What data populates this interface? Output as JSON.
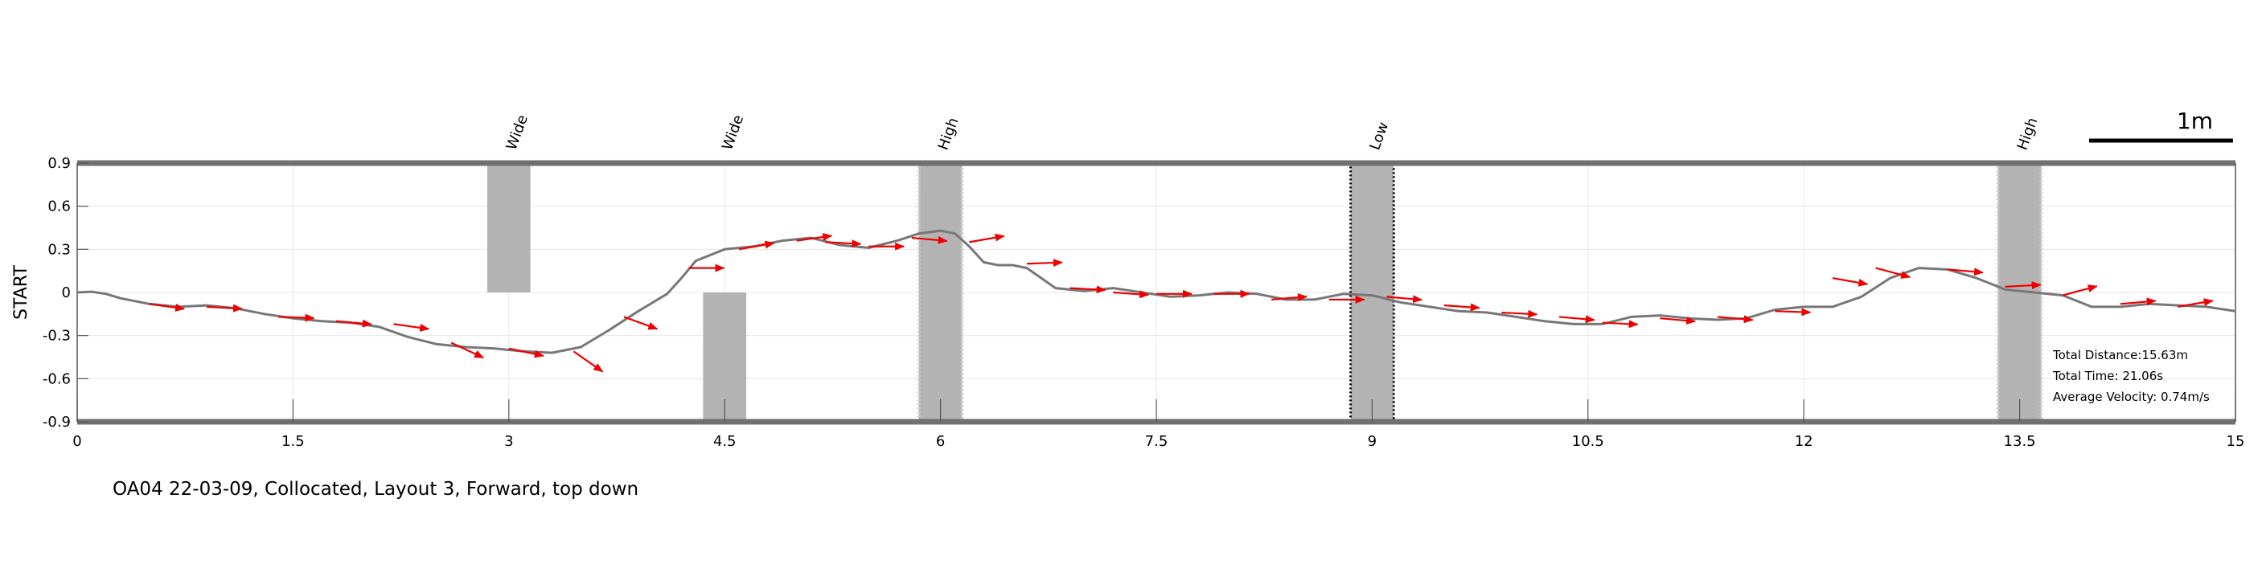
{
  "chart_data": {
    "type": "line",
    "ylabel": "START",
    "xlabel": "",
    "xlim": [
      0,
      15
    ],
    "ylim": [
      -0.9,
      0.9
    ],
    "x_ticks": [
      0,
      1.5,
      3,
      4.5,
      6,
      7.5,
      9,
      10.5,
      12,
      13.5,
      15
    ],
    "y_ticks": [
      0.9,
      0.6,
      0.3,
      0,
      -0.3,
      -0.6,
      -0.9
    ],
    "grid": true,
    "scale_bar_label": "1m",
    "scale_bar_length": 1,
    "caption": "OA04 22-03-09, Collocated, Layout 3, Forward, top down",
    "stats": [
      "Total Distance:15.63m",
      "Total Time: 21.06s",
      "Average Velocity: 0.74m/s"
    ],
    "obstacles": [
      {
        "label": "Wide",
        "x0": 2.85,
        "x1": 3.15,
        "y0": 0.0,
        "y1": 0.9,
        "dotted_border": false
      },
      {
        "label": "Wide",
        "x0": 4.35,
        "x1": 4.65,
        "y0": -0.9,
        "y1": 0.0,
        "dotted_border": false
      },
      {
        "label": "High",
        "x0": 5.85,
        "x1": 6.15,
        "y0": -0.9,
        "y1": 0.9,
        "dotted_border": true,
        "edge_color": "#cccccc"
      },
      {
        "label": "Low",
        "x0": 8.85,
        "x1": 9.15,
        "y0": -0.9,
        "y1": 0.9,
        "dotted_border": true,
        "edge_color": "#000000"
      },
      {
        "label": "High",
        "x0": 13.35,
        "x1": 13.65,
        "y0": -0.9,
        "y1": 0.9,
        "dotted_border": true,
        "edge_color": "#cccccc"
      }
    ],
    "series": [
      {
        "color": "#777777",
        "x": [
          0,
          0.1,
          0.2,
          0.3,
          0.5,
          0.7,
          0.9,
          1.1,
          1.3,
          1.5,
          1.7,
          1.9,
          2.1,
          2.3,
          2.5,
          2.7,
          2.9,
          3.1,
          3.3,
          3.5,
          3.7,
          3.9,
          4.1,
          4.2,
          4.3,
          4.5,
          4.7,
          4.9,
          5.1,
          5.3,
          5.5,
          5.7,
          5.85,
          6.0,
          6.1,
          6.2,
          6.3,
          6.4,
          6.5,
          6.6,
          6.8,
          7.0,
          7.2,
          7.4,
          7.6,
          7.8,
          8.0,
          8.2,
          8.4,
          8.6,
          8.8,
          9.0,
          9.2,
          9.4,
          9.6,
          9.8,
          10.0,
          10.2,
          10.4,
          10.6,
          10.8,
          11.0,
          11.2,
          11.4,
          11.6,
          11.8,
          12.0,
          12.2,
          12.4,
          12.6,
          12.8,
          13.0,
          13.2,
          13.4,
          13.6,
          13.8,
          14.0,
          14.2,
          14.4,
          14.6,
          14.8,
          15.0
        ],
        "y": [
          0,
          0.005,
          -0.01,
          -0.04,
          -0.08,
          -0.1,
          -0.09,
          -0.11,
          -0.15,
          -0.18,
          -0.2,
          -0.21,
          -0.24,
          -0.31,
          -0.36,
          -0.38,
          -0.39,
          -0.41,
          -0.42,
          -0.38,
          -0.26,
          -0.13,
          -0.01,
          0.1,
          0.22,
          0.3,
          0.32,
          0.36,
          0.38,
          0.33,
          0.31,
          0.36,
          0.41,
          0.43,
          0.41,
          0.32,
          0.21,
          0.19,
          0.19,
          0.17,
          0.03,
          0.01,
          0.03,
          0.0,
          -0.03,
          -0.02,
          0.0,
          -0.01,
          -0.05,
          -0.05,
          -0.01,
          -0.02,
          -0.07,
          -0.1,
          -0.13,
          -0.14,
          -0.17,
          -0.2,
          -0.22,
          -0.22,
          -0.17,
          -0.16,
          -0.18,
          -0.19,
          -0.18,
          -0.12,
          -0.1,
          -0.1,
          -0.03,
          0.1,
          0.17,
          0.16,
          0.1,
          0.02,
          0.0,
          -0.02,
          -0.1,
          -0.1,
          -0.08,
          -0.09,
          -0.1,
          -0.13
        ]
      }
    ],
    "direction_arrows": {
      "color": "#ee0000",
      "x": [
        0.5,
        0.9,
        1.4,
        1.8,
        2.2,
        2.6,
        3.0,
        3.45,
        3.8,
        4.25,
        4.6,
        5.0,
        5.2,
        5.5,
        5.8,
        6.2,
        6.6,
        6.9,
        7.2,
        7.5,
        7.9,
        8.3,
        8.7,
        9.1,
        9.5,
        9.9,
        10.3,
        10.6,
        11.0,
        11.4,
        11.8,
        12.2,
        12.5,
        13.0,
        13.4,
        13.8,
        14.2,
        14.6
      ],
      "y": [
        -0.08,
        -0.1,
        -0.17,
        -0.2,
        -0.22,
        -0.35,
        -0.39,
        -0.41,
        -0.17,
        0.17,
        0.3,
        0.36,
        0.35,
        0.32,
        0.38,
        0.35,
        0.2,
        0.03,
        0.0,
        -0.01,
        -0.01,
        -0.05,
        -0.05,
        -0.03,
        -0.09,
        -0.14,
        -0.17,
        -0.21,
        -0.18,
        -0.17,
        -0.13,
        0.1,
        0.17,
        0.16,
        0.04,
        -0.02,
        -0.08,
        -0.1
      ],
      "angle_deg": [
        -8,
        -3,
        -2,
        -5,
        -8,
        -25,
        -12,
        -35,
        -20,
        0,
        10,
        8,
        -3,
        0,
        -5,
        10,
        2,
        -3,
        -4,
        0,
        0,
        5,
        0,
        -5,
        -4,
        -3,
        -5,
        -3,
        -5,
        -5,
        -2,
        -10,
        -15,
        -5,
        3,
        15,
        5,
        10
      ]
    }
  }
}
